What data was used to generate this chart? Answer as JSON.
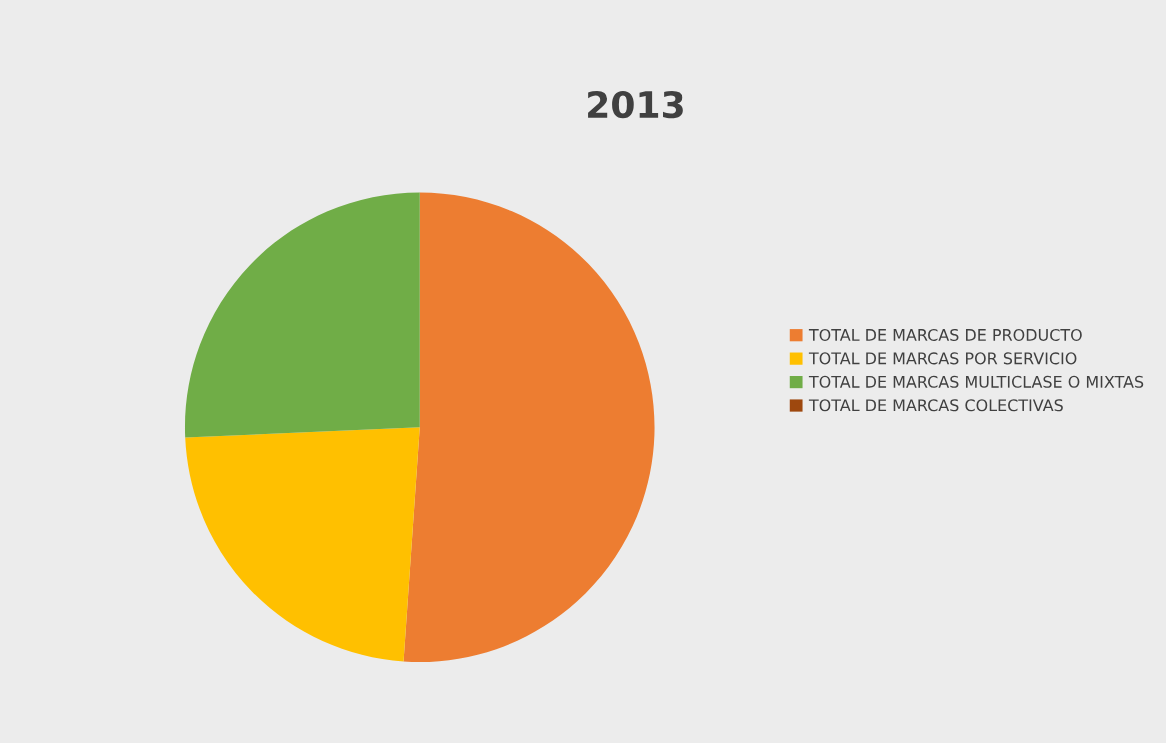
{
  "chart_data": {
    "type": "pie",
    "title": "2013",
    "categories": [
      "TOTAL DE MARCAS DE PRODUCTO",
      "TOTAL DE MARCAS POR SERVICIO",
      "TOTAL DE MARCAS MULTICLASE O MIXTAS",
      "TOTAL DE MARCAS COLECTIVAS"
    ],
    "values": [
      51.1,
      23.2,
      25.7,
      0
    ],
    "colors": [
      "#ed7d31",
      "#ffc000",
      "#70ad47",
      "#9e480e"
    ],
    "legend": "right"
  }
}
